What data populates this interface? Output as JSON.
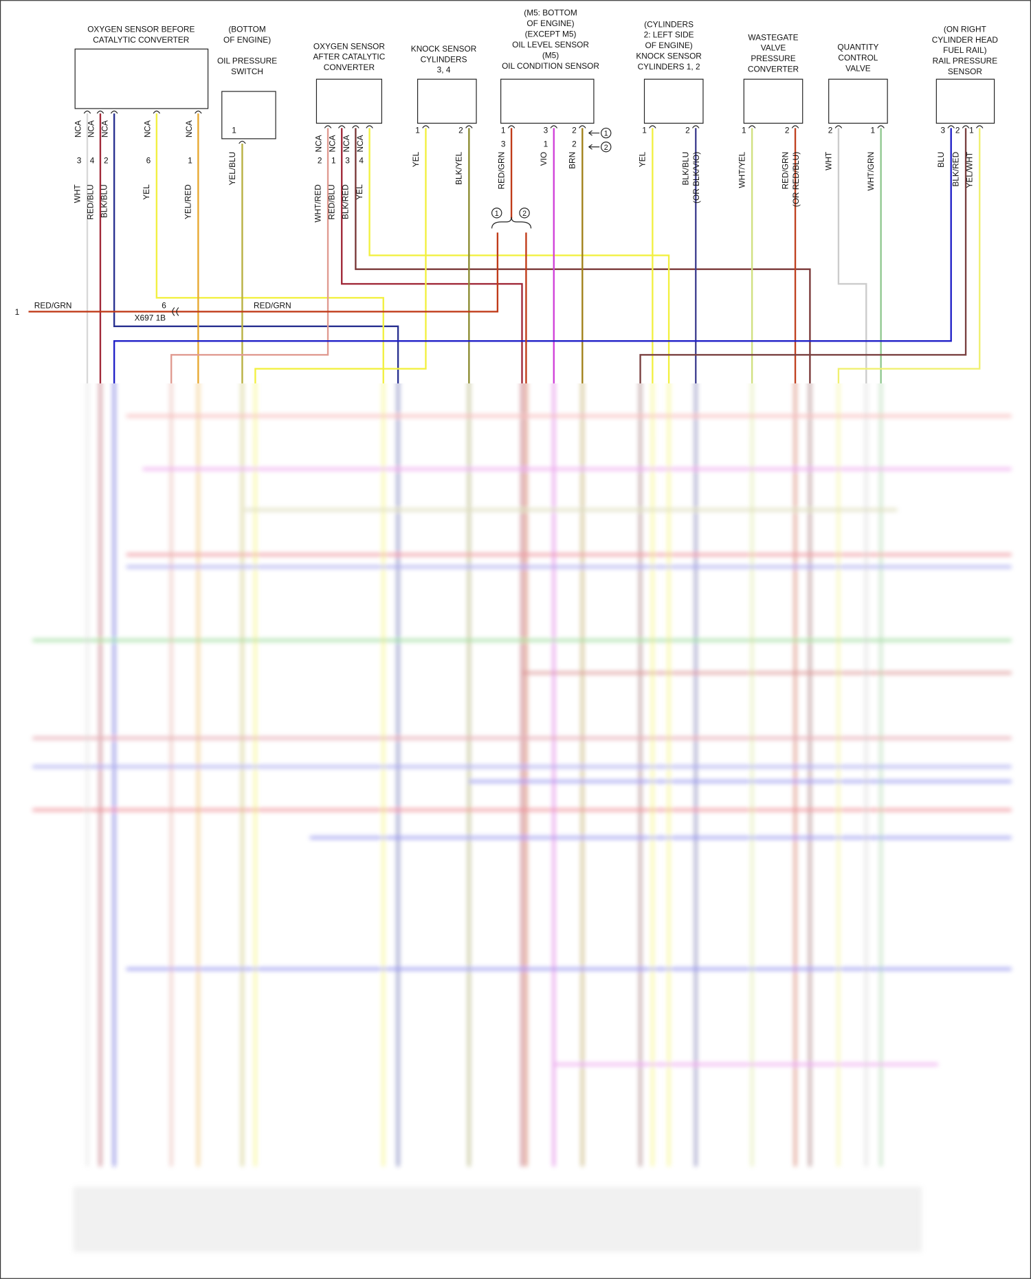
{
  "components": [
    {
      "label": [
        "OXYGEN SENSOR BEFORE",
        "CATALYTIC CONVERTER"
      ],
      "wires": [
        {
          "nca": "NCA",
          "pin": [
            "3"
          ],
          "color": [
            "WHT"
          ]
        },
        {
          "nca": "NCA",
          "pin": [
            "4"
          ],
          "color": [
            "RED/BLU"
          ]
        },
        {
          "nca": "NCA",
          "pin": [
            "2"
          ],
          "color": [
            "BLK/BLU"
          ]
        },
        {
          "nca": "NCA",
          "pin": [
            "6"
          ],
          "color": [
            "YEL"
          ]
        },
        {
          "nca": "NCA",
          "pin": [
            "1"
          ],
          "color": [
            "YEL/RED"
          ]
        }
      ]
    },
    {
      "label": [
        "(BOTTOM",
        "OF ENGINE)",
        "",
        "OIL PRESSURE",
        "SWITCH"
      ],
      "wires": [
        {
          "pin": [
            "1"
          ],
          "color": [
            "YEL/BLU"
          ]
        }
      ]
    },
    {
      "label": [
        "OXYGEN SENSOR",
        "AFTER CATALYTIC",
        "CONVERTER"
      ],
      "wires": [
        {
          "nca": "NCA",
          "pin": [
            "2"
          ],
          "color": [
            "WHT/RED"
          ]
        },
        {
          "nca": "NCA",
          "pin": [
            "1"
          ],
          "color": [
            "RED/BLU"
          ]
        },
        {
          "nca": "NCA",
          "pin": [
            "3"
          ],
          "color": [
            "BLK/RED"
          ]
        },
        {
          "nca": "NCA",
          "pin": [
            "4"
          ],
          "color": [
            "YEL"
          ]
        }
      ]
    },
    {
      "label": [
        "KNOCK SENSOR",
        "CYLINDERS",
        "3, 4"
      ],
      "wires": [
        {
          "pin": [
            "1"
          ],
          "color": [
            "YEL"
          ]
        },
        {
          "pin": [
            "2"
          ],
          "color": [
            "BLK/YEL"
          ]
        }
      ]
    },
    {
      "label": [
        "(M5: BOTTOM",
        "OF ENGINE)",
        "(EXCEPT M5)",
        "OIL LEVEL SENSOR",
        "(M5)",
        "OIL CONDITION SENSOR"
      ],
      "wires": [
        {
          "pin": [
            "1",
            "3"
          ],
          "color": [
            "RED/GRN"
          ]
        },
        {
          "pin": [
            "3",
            "1"
          ],
          "color": [
            "VIO"
          ]
        },
        {
          "pin": [
            "2",
            "2"
          ],
          "color": [
            "BRN"
          ]
        }
      ]
    },
    {
      "label": [
        "(CYLINDERS",
        "2: LEFT SIDE",
        "OF ENGINE)",
        "KNOCK SENSOR",
        "CYLINDERS 1, 2"
      ],
      "wires": [
        {
          "pin": [
            "1"
          ],
          "color": [
            "YEL"
          ]
        },
        {
          "pin": [
            "2"
          ],
          "color": [
            "BLK/BLU",
            "(OR BLK/VIO)"
          ]
        }
      ]
    },
    {
      "label": [
        "WASTEGATE",
        "VALVE",
        "PRESSURE",
        "CONVERTER"
      ],
      "wires": [
        {
          "pin": [
            "1"
          ],
          "color": [
            "WHT/YEL"
          ]
        },
        {
          "pin": [
            "2"
          ],
          "color": [
            "RED/GRN",
            "(OR RED/BLU)"
          ]
        }
      ]
    },
    {
      "label": [
        "QUANTITY",
        "CONTROL",
        "VALVE"
      ],
      "wires": [
        {
          "pin": [
            "2"
          ],
          "color": [
            "WHT"
          ]
        },
        {
          "pin": [
            "1"
          ],
          "color": [
            "WHT/GRN"
          ]
        }
      ]
    },
    {
      "label": [
        "(ON RIGHT",
        "CYLINDER HEAD",
        "FUEL RAIL)",
        "RAIL PRESSURE",
        "SENSOR"
      ],
      "wires": [
        {
          "pin": [
            "3"
          ],
          "color": [
            "BLU"
          ]
        },
        {
          "pin": [
            "2"
          ],
          "color": [
            "BLK/RED"
          ]
        },
        {
          "pin": [
            "1"
          ],
          "color": [
            "YEL/WHT"
          ]
        }
      ]
    }
  ],
  "callouts": [
    "1",
    "2"
  ],
  "connector": {
    "pin": "1",
    "left_label": "RED/GRN",
    "cavity": "6",
    "name": "X697 1B",
    "right_label": "RED/GRN"
  }
}
